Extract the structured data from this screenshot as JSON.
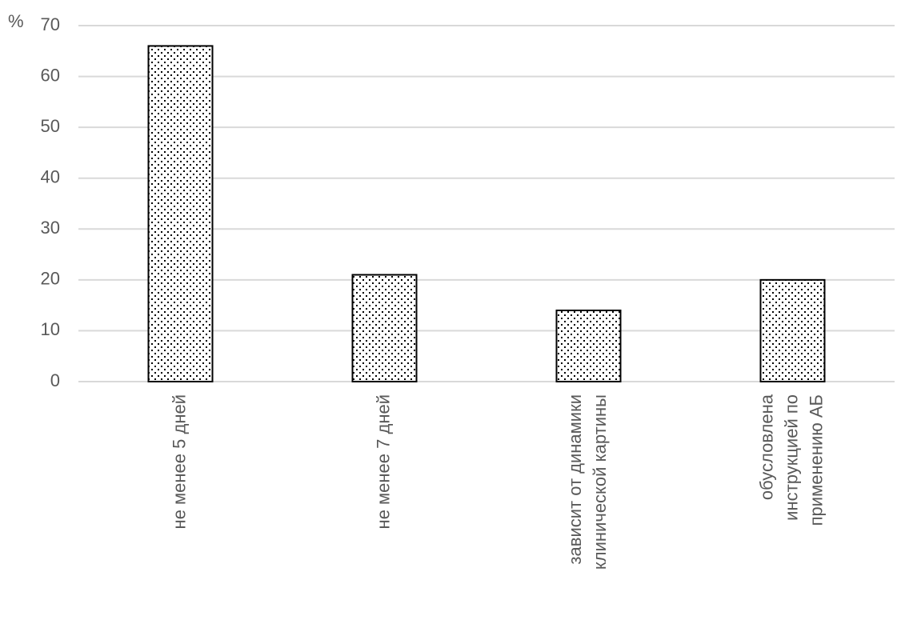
{
  "chart_data": {
    "type": "bar",
    "y_label": "%",
    "categories": [
      "не менее 5 дней",
      "не менее 7 дней",
      "зависит от динамики клинической картины",
      "обусловлена инструкцией по применению АБ"
    ],
    "values": [
      66,
      21,
      14,
      20
    ],
    "color": "#000000",
    "ylim": [
      0,
      70
    ],
    "yticks": [
      0,
      10,
      20,
      30,
      40,
      50,
      60,
      70
    ],
    "grid": true
  }
}
